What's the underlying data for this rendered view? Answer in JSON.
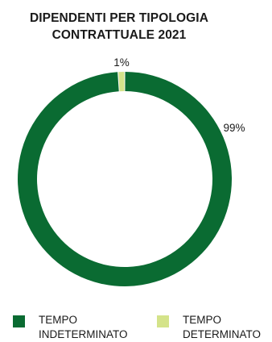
{
  "chart_data": {
    "type": "pie",
    "title_lines": [
      "DIPENDENTI PER TIPOLOGIA",
      "CONTRATTUALE 2021"
    ],
    "donut": true,
    "slices": [
      {
        "label": "TEMPO\nINDETERMINATO",
        "value": 99,
        "value_label": "99%",
        "color": "#0a6b32"
      },
      {
        "label": "TEMPO\nDETERMINATO",
        "value": 1,
        "value_label": "1%",
        "color": "#d4e38a"
      }
    ],
    "legend_position": "bottom",
    "start_angle": "top",
    "direction": "clockwise"
  }
}
